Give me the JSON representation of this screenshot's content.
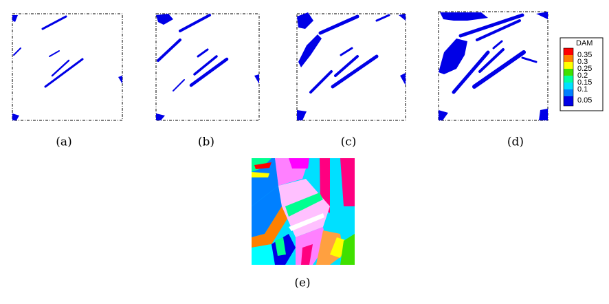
{
  "panels": [
    {
      "label": "(a)"
    },
    {
      "label": "(b)"
    },
    {
      "label": "(c)"
    },
    {
      "label": "(d)"
    },
    {
      "label": "(e)"
    }
  ],
  "legend": {
    "title": "DAM",
    "ticks": [
      0.35,
      0.3,
      0.25,
      0.2,
      0.15,
      0.1,
      0.05
    ]
  }
}
